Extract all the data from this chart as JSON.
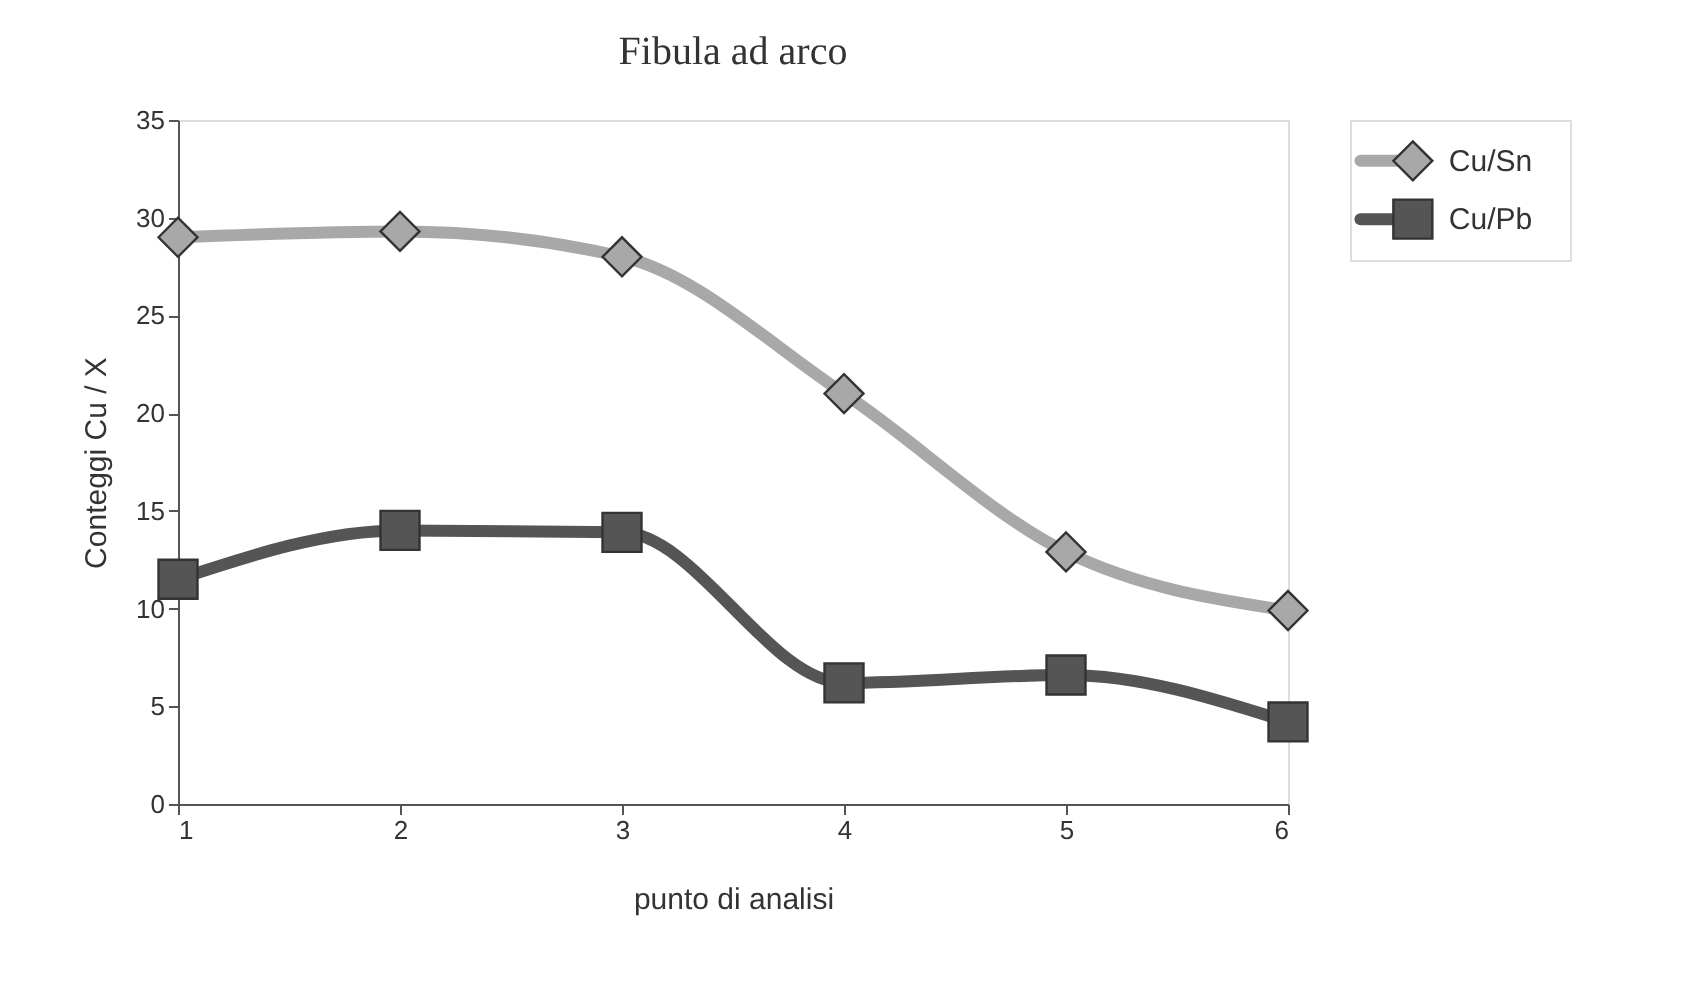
{
  "chart_data": {
    "type": "line",
    "title": "Fibula ad arco",
    "xlabel": "punto di analisi",
    "ylabel": "Conteggi Cu / X",
    "x": [
      1,
      2,
      3,
      4,
      5,
      6
    ],
    "series": [
      {
        "name": "Cu/Sn",
        "color": "#a8a8a8",
        "marker": "diamond",
        "values": [
          29,
          29.3,
          28,
          21,
          12.9,
          9.9
        ]
      },
      {
        "name": "Cu/Pb",
        "color": "#555555",
        "marker": "square",
        "values": [
          11.5,
          14,
          13.9,
          6.2,
          6.6,
          4.2
        ]
      }
    ],
    "xlim": [
      1,
      6
    ],
    "xticks": [
      1,
      2,
      3,
      4,
      5,
      6
    ],
    "ylim": [
      0,
      35
    ],
    "yticks": [
      0,
      5,
      10,
      15,
      20,
      25,
      30,
      35
    ],
    "grid": false,
    "legend": "right",
    "line_style": "solid"
  }
}
